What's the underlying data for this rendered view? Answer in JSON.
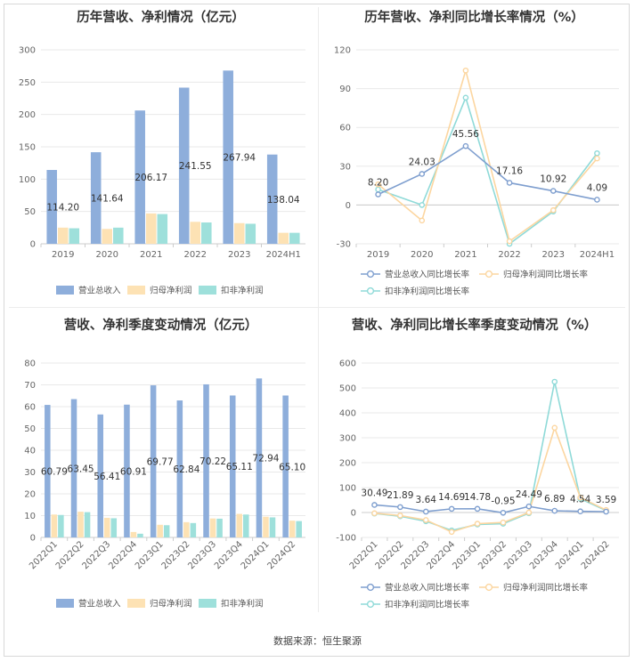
{
  "source": "数据来源：恒生聚源",
  "colors": {
    "revenue": "#8eaedb",
    "parent_profit": "#fde2b4",
    "deducted_profit": "#9ee0db",
    "grid": "#e9e9e9",
    "axis": "#cccccc"
  },
  "chart_data": [
    {
      "id": "annual-bar",
      "type": "bar",
      "title": "历年营收、净利情况（亿元）",
      "categories": [
        "2019",
        "2020",
        "2021",
        "2022",
        "2023",
        "2024H1"
      ],
      "ylim": [
        0,
        300
      ],
      "yticks": [
        0,
        50,
        100,
        150,
        200,
        250,
        300
      ],
      "series": [
        {
          "name": "营业总收入",
          "color": "#8eaedb",
          "values": [
            114.2,
            141.64,
            206.17,
            241.55,
            267.94,
            138.04
          ],
          "labels": [
            "114.20",
            "141.64",
            "206.17",
            "241.55",
            "267.94",
            "138.04"
          ]
        },
        {
          "name": "归母净利润",
          "color": "#fde2b4",
          "values": [
            25,
            23,
            47,
            34,
            32,
            17
          ]
        },
        {
          "name": "扣非净利润",
          "color": "#9ee0db",
          "values": [
            24,
            25,
            46,
            33,
            31,
            17
          ]
        }
      ]
    },
    {
      "id": "annual-line",
      "type": "line",
      "title": "历年营收、净利同比增长率情况（%）",
      "categories": [
        "2019",
        "2020",
        "2021",
        "2022",
        "2023",
        "2024H1"
      ],
      "ylim": [
        -30,
        120
      ],
      "yticks": [
        -30,
        0,
        30,
        60,
        90,
        120
      ],
      "series": [
        {
          "name": "营业总收入同比增长率",
          "color": "#7f9fcf",
          "values": [
            8.2,
            24.03,
            45.56,
            17.16,
            10.92,
            4.09
          ],
          "labels": [
            "8.20",
            "24.03",
            "45.56",
            "17.16",
            "10.92",
            "4.09"
          ]
        },
        {
          "name": "归母净利润同比增长率",
          "color": "#fcd6a0",
          "values": [
            16,
            -12,
            104,
            -28,
            -4,
            36
          ]
        },
        {
          "name": "扣非净利润同比增长率",
          "color": "#8fdad8",
          "values": [
            12,
            0,
            83,
            -30,
            -5,
            40
          ]
        }
      ]
    },
    {
      "id": "quarter-bar",
      "type": "bar",
      "title": "营收、净利季度变动情况（亿元）",
      "categories": [
        "2022Q1",
        "2022Q2",
        "2022Q3",
        "2022Q4",
        "2023Q1",
        "2023Q2",
        "2023Q3",
        "2023Q4",
        "2024Q1",
        "2024Q2"
      ],
      "ylim": [
        0,
        80
      ],
      "yticks": [
        0,
        10,
        20,
        30,
        40,
        50,
        60,
        70,
        80
      ],
      "series": [
        {
          "name": "营业总收入",
          "color": "#8eaedb",
          "values": [
            60.79,
            63.45,
            56.41,
            60.91,
            69.77,
            62.84,
            70.22,
            65.11,
            72.94,
            65.1
          ],
          "labels": [
            "60.79",
            "63.45",
            "56.41",
            "60.91",
            "69.77",
            "62.84",
            "70.22",
            "65.11",
            "72.94",
            "65.10"
          ]
        },
        {
          "name": "归母净利润",
          "color": "#fde2b4",
          "values": [
            10.5,
            11.8,
            9.0,
            2.5,
            5.8,
            7.0,
            8.7,
            10.8,
            9.5,
            7.7
          ]
        },
        {
          "name": "扣非净利润",
          "color": "#9ee0db",
          "values": [
            10.3,
            11.6,
            8.8,
            1.7,
            5.6,
            6.6,
            8.6,
            10.5,
            9.2,
            7.5
          ]
        }
      ]
    },
    {
      "id": "quarter-line",
      "type": "line",
      "title": "营收、净利同比增长率季度变动情况（%）",
      "categories": [
        "2022Q1",
        "2022Q2",
        "2022Q3",
        "2022Q4",
        "2023Q1",
        "2023Q2",
        "2023Q3",
        "2023Q4",
        "2024Q1",
        "2024Q2"
      ],
      "ylim": [
        -100,
        600
      ],
      "yticks": [
        -100,
        0,
        100,
        200,
        300,
        400,
        500,
        600
      ],
      "series": [
        {
          "name": "营业总收入同比增长率",
          "color": "#7f9fcf",
          "values": [
            30.49,
            21.89,
            3.64,
            14.69,
            14.78,
            -0.95,
            24.49,
            6.89,
            4.54,
            3.59
          ],
          "labels": [
            "30.49",
            "21.89",
            "3.64",
            "14.69",
            "14.78",
            "-0.95",
            "24.49",
            "6.89",
            "4.54",
            "3.59"
          ]
        },
        {
          "name": "归母净利润同比增长率",
          "color": "#fcd6a0",
          "values": [
            -3,
            -12,
            -30,
            -78,
            -45,
            -40,
            0,
            340,
            60,
            10
          ]
        },
        {
          "name": "扣非净利润同比增长率",
          "color": "#8fdad8",
          "values": [
            -4,
            -15,
            -35,
            -72,
            -48,
            -45,
            -3,
            525,
            55,
            8
          ]
        }
      ]
    }
  ]
}
